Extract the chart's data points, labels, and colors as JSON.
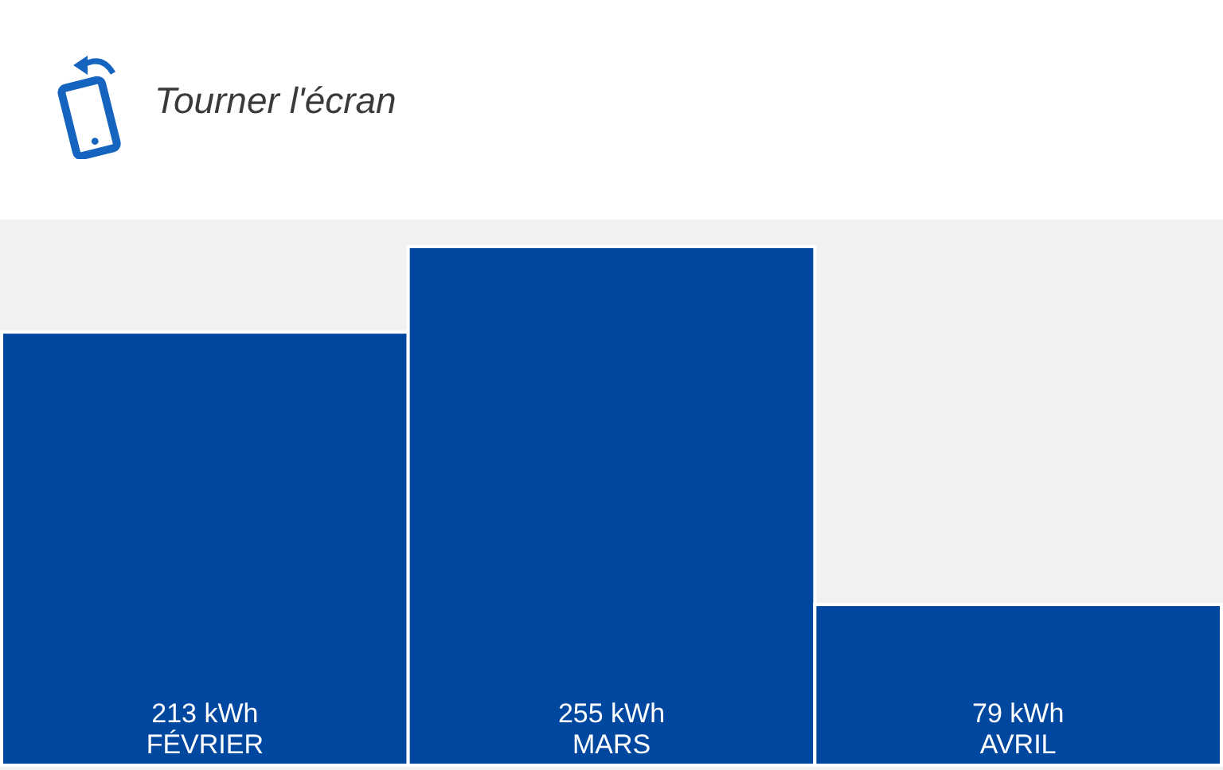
{
  "chart_data": {
    "type": "bar",
    "categories": [
      "FÉVRIER",
      "MARS",
      "AVRIL"
    ],
    "values": [
      213,
      255,
      79
    ],
    "color": "#0047a0",
    "value_labels": [
      "213 kWh",
      "255 kWh",
      "79 kWh"
    ],
    "annotations": [
      "Tourner l'écran"
    ]
  }
}
